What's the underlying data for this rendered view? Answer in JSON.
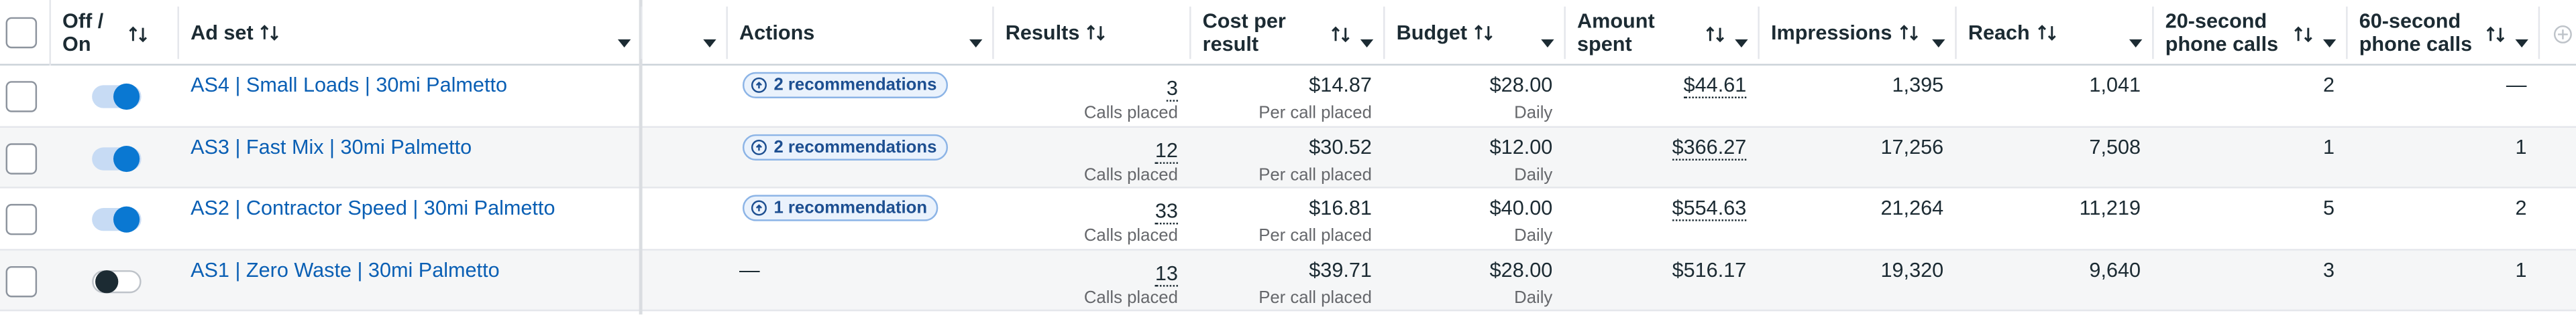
{
  "header": {
    "columns": [
      "Off / On",
      "Ad set",
      "Actions",
      "Results",
      "Cost per result",
      "Budget",
      "Amount spent",
      "Impressions",
      "Reach",
      "20-second phone calls",
      "60-second phone calls"
    ]
  },
  "rows": [
    {
      "active": true,
      "ad_set": "AS4 | Small Loads | 30mi Palmetto",
      "actions": "2 recommendations",
      "badge": true,
      "results": "3",
      "results_note": "Calls placed",
      "cost_per_result": "$14.87",
      "cost_note": "Per call placed",
      "budget": "$28.00",
      "budget_note": "Daily",
      "amount_spent": "$44.61",
      "spent_underlined": true,
      "impressions": "1,395",
      "reach": "1,041",
      "calls_20s": "2",
      "calls_60s": "—"
    },
    {
      "active": true,
      "ad_set": "AS3 | Fast Mix | 30mi Palmetto",
      "actions": "2 recommendations",
      "badge": true,
      "results": "12",
      "results_note": "Calls placed",
      "cost_per_result": "$30.52",
      "cost_note": "Per call placed",
      "budget": "$12.00",
      "budget_note": "Daily",
      "amount_spent": "$366.27",
      "spent_underlined": true,
      "impressions": "17,256",
      "reach": "7,508",
      "calls_20s": "1",
      "calls_60s": "1"
    },
    {
      "active": true,
      "ad_set": "AS2 | Contractor Speed | 30mi Palmetto",
      "actions": "1 recommendation",
      "badge": true,
      "results": "33",
      "results_note": "Calls placed",
      "cost_per_result": "$16.81",
      "cost_note": "Per call placed",
      "budget": "$40.00",
      "budget_note": "Daily",
      "amount_spent": "$554.63",
      "spent_underlined": true,
      "impressions": "21,264",
      "reach": "11,219",
      "calls_20s": "5",
      "calls_60s": "2"
    },
    {
      "active": false,
      "ad_set": "AS1 | Zero Waste | 30mi Palmetto",
      "actions": "—",
      "badge": false,
      "results": "13",
      "results_note": "Calls placed",
      "cost_per_result": "$39.71",
      "cost_note": "Per call placed",
      "budget": "$28.00",
      "budget_note": "Daily",
      "amount_spent": "$516.17",
      "spent_underlined": false,
      "impressions": "19,320",
      "reach": "9,640",
      "calls_20s": "3",
      "calls_60s": "1"
    }
  ]
}
